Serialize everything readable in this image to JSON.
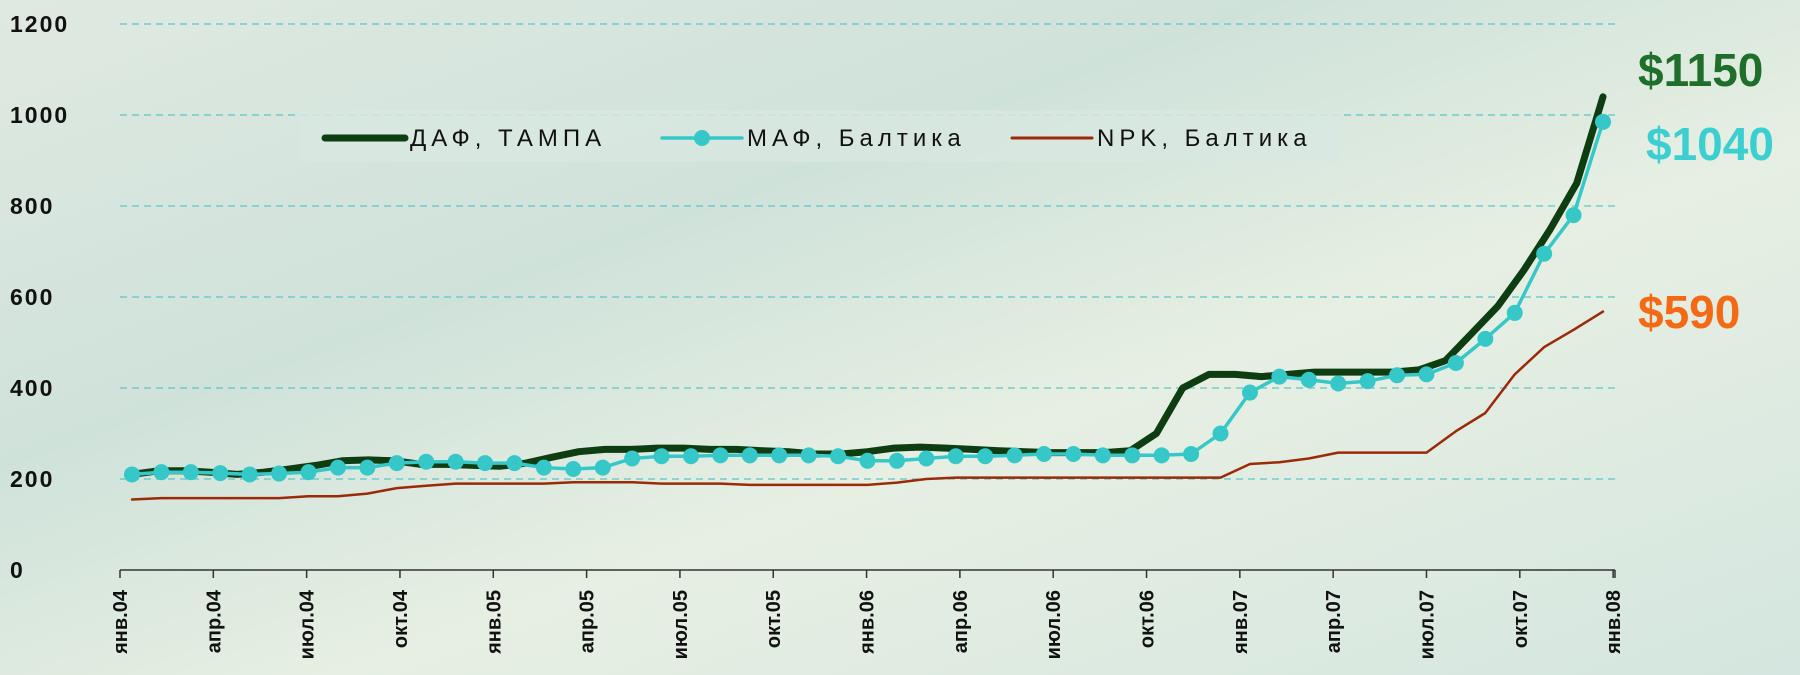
{
  "chart_data": {
    "type": "line",
    "title": "",
    "xlabel": "",
    "ylabel": "",
    "ylim": [
      0,
      1200
    ],
    "yticks": [
      "0",
      "200",
      "400",
      "600",
      "800",
      "1000",
      "1200"
    ],
    "x_tick_labels": [
      "янв.04",
      "апр.04",
      "июл.04",
      "окт.04",
      "янв.05",
      "апр.05",
      "июл.05",
      "окт.05",
      "янв.06",
      "апр.06",
      "июл.06",
      "окт.06",
      "янв.07",
      "апр.07",
      "июл.07",
      "окт.07",
      "янв.08"
    ],
    "grid": true,
    "legend_position": "top",
    "series": [
      {
        "name": "ДАФ, ТАМПА",
        "color": "#0d3d10",
        "marker": "none",
        "values": [
          210,
          218,
          218,
          215,
          210,
          215,
          222,
          230,
          240,
          242,
          240,
          232,
          232,
          230,
          228,
          235,
          248,
          260,
          265,
          265,
          268,
          268,
          265,
          265,
          262,
          260,
          255,
          255,
          260,
          268,
          270,
          268,
          265,
          262,
          260,
          258,
          258,
          258,
          262,
          300,
          400,
          430,
          430,
          425,
          430,
          435,
          435,
          435,
          435,
          440,
          460,
          520,
          580,
          660,
          750,
          850,
          1040
        ]
      },
      {
        "name": "МАФ, Балтика",
        "color": "#36c8c8",
        "marker": "circle",
        "values": [
          210,
          215,
          215,
          213,
          210,
          212,
          215,
          225,
          225,
          235,
          238,
          238,
          235,
          235,
          225,
          222,
          225,
          245,
          250,
          250,
          252,
          252,
          252,
          252,
          250,
          240,
          240,
          245,
          250,
          250,
          252,
          255,
          255,
          252,
          252,
          252,
          255,
          300,
          390,
          425,
          418,
          410,
          415,
          428,
          430,
          455,
          508,
          565,
          695,
          780,
          985
        ]
      },
      {
        "name": "NPK, Балтика",
        "color": "#9a2a08",
        "marker": "none",
        "values": [
          155,
          158,
          158,
          158,
          158,
          158,
          162,
          162,
          168,
          180,
          185,
          190,
          190,
          190,
          190,
          193,
          193,
          193,
          190,
          190,
          190,
          187,
          187,
          187,
          187,
          187,
          192,
          200,
          203,
          203,
          203,
          203,
          203,
          203,
          203,
          203,
          203,
          203,
          233,
          237,
          245,
          258,
          258,
          258,
          258,
          305,
          345,
          430,
          490,
          528,
          568
        ]
      }
    ],
    "annotations": [
      {
        "text": "$1150",
        "color": "#1f6e2a"
      },
      {
        "text": "$1040",
        "color": "#3ccfd2"
      },
      {
        "text": "$590",
        "color": "#f46a14"
      }
    ]
  }
}
